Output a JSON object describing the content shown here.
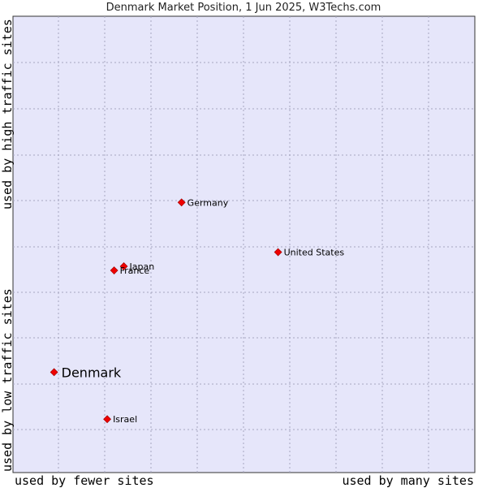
{
  "chart_data": {
    "type": "scatter",
    "title": "Denmark Market Position, 1 Jun 2025, W3Techs.com",
    "xlabel_low": "used by fewer sites",
    "xlabel_high": "used by many sites",
    "ylabel_low": "used by low traffic sites",
    "ylabel_high": "used by high traffic sites",
    "xlim": [
      0,
      100
    ],
    "ylim": [
      0,
      100
    ],
    "grid": true,
    "highlight": "Denmark",
    "points": [
      {
        "name": "Germany",
        "x": 36.5,
        "y": 59.2
      },
      {
        "name": "United States",
        "x": 57.4,
        "y": 48.3
      },
      {
        "name": "Japan",
        "x": 24.0,
        "y": 45.2
      },
      {
        "name": "France",
        "x": 21.9,
        "y": 44.3
      },
      {
        "name": "Denmark",
        "x": 8.9,
        "y": 22.0
      },
      {
        "name": "Israel",
        "x": 20.4,
        "y": 11.7
      }
    ]
  },
  "colors": {
    "plot_bg": "#e6e6fa",
    "grid": "#a6a6c0",
    "marker": "#ee0000",
    "frame": "#333333"
  }
}
